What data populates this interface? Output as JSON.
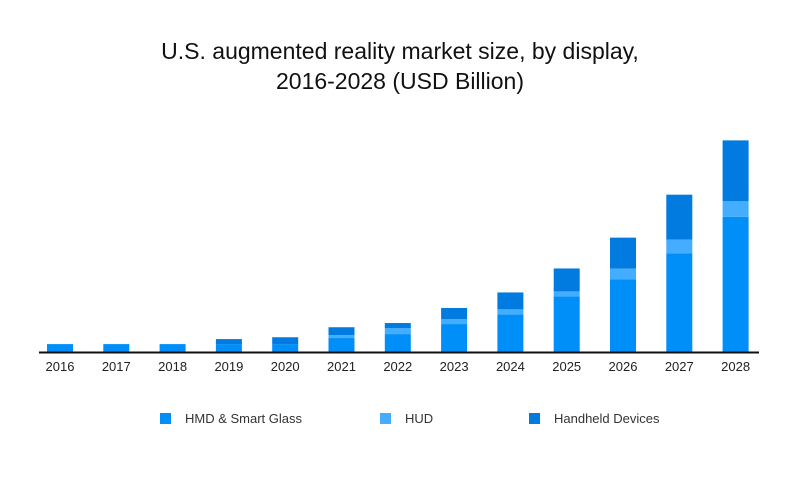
{
  "chart_data": {
    "type": "bar",
    "stacked": true,
    "title": "U.S. augmented reality market size, by display,\n2016-2028 (USD Billion)",
    "title_lines": [
      "U.S. augmented reality market size, by display,",
      "2016-2028 (USD Billion)"
    ],
    "xlabel": "",
    "ylabel": "",
    "categories": [
      "2016",
      "2017",
      "2018",
      "2019",
      "2020",
      "2021",
      "2022",
      "2023",
      "2024",
      "2025",
      "2026",
      "2027",
      "2028"
    ],
    "series": [
      {
        "name": "HMD & Smart Glass",
        "color": "#008ef9",
        "values": [
          0.3,
          0.3,
          0.3,
          0.3,
          0.3,
          0.53,
          0.68,
          1.06,
          1.43,
          2.11,
          2.75,
          3.74,
          5.13
        ]
      },
      {
        "name": "HUD",
        "color": "#44adff",
        "values": [
          0.0,
          0.0,
          0.0,
          0.0,
          0.0,
          0.11,
          0.23,
          0.19,
          0.19,
          0.19,
          0.42,
          0.53,
          0.6
        ]
      },
      {
        "name": "Handheld Devices",
        "color": "#027be0",
        "values": [
          0.0,
          0.0,
          0.0,
          0.19,
          0.26,
          0.3,
          0.19,
          0.42,
          0.64,
          0.87,
          1.17,
          1.7,
          2.3
        ]
      }
    ],
    "ylim": [
      0,
      8.5
    ],
    "grid": false,
    "y_axis_visible": false,
    "legend_position": "bottom"
  }
}
